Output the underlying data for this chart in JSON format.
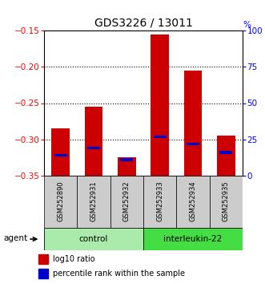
{
  "title": "GDS3226 / 13011",
  "samples": [
    "GSM252890",
    "GSM252931",
    "GSM252932",
    "GSM252933",
    "GSM252934",
    "GSM252935"
  ],
  "log10_values": [
    -0.285,
    -0.255,
    -0.325,
    -0.155,
    -0.205,
    -0.295
  ],
  "percentile_values": [
    14,
    19,
    11,
    27,
    22,
    16
  ],
  "ylim_left": [
    -0.35,
    -0.15
  ],
  "ylim_right": [
    0,
    100
  ],
  "yticks_left": [
    -0.35,
    -0.3,
    -0.25,
    -0.2,
    -0.15
  ],
  "yticks_right": [
    0,
    25,
    50,
    75,
    100
  ],
  "groups": [
    {
      "label": "control",
      "indices": [
        0,
        1,
        2
      ],
      "color": "#AAEAAA"
    },
    {
      "label": "interleukin-22",
      "indices": [
        3,
        4,
        5
      ],
      "color": "#44DD44"
    }
  ],
  "bar_bottom": -0.35,
  "red_color": "#CC0000",
  "blue_color": "#0000CC",
  "bar_width": 0.55,
  "background_color": "#CCCCCC",
  "plot_bg_color": "#FFFFFF"
}
